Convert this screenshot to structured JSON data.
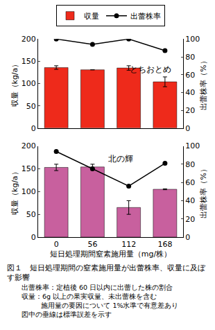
{
  "chart_data": [
    {
      "type": "bar",
      "annotations": [
        {
          "text": "とちおとめ"
        }
      ],
      "categories": [
        "0",
        "56",
        "112",
        "168"
      ],
      "tick_labels": "y",
      "y_label": "収量（kg/a）",
      "y2_label": "出蕾株率（%）",
      "ylim": [
        0,
        200
      ],
      "yticks": [
        0,
        50,
        100,
        150,
        200
      ],
      "y2lim": [
        0,
        100
      ],
      "y2ticks": [
        0,
        20,
        40,
        60,
        80,
        100
      ],
      "grid": false,
      "legend": "top",
      "series": [
        {
          "name": "収量",
          "type": "bar",
          "color": "#ee2a1b",
          "values": [
            136,
            131,
            135,
            104
          ],
          "errors": [
            4,
            0,
            5,
            11
          ]
        },
        {
          "name": "出蕾株率",
          "type": "line",
          "axis": "y2",
          "color": "#000000",
          "marker": "circle",
          "line_style": "solid",
          "values": [
            100,
            94,
            100,
            87
          ]
        }
      ]
    },
    {
      "type": "bar",
      "annotations": [
        {
          "text": "北の輝"
        }
      ],
      "categories": [
        "0",
        "56",
        "112",
        "168"
      ],
      "x_label": "短日処理期間窒素施用量（mg/株）",
      "y_label": "収量（kg/a）",
      "y2_label": "出蕾株率（%）",
      "ylim": [
        0,
        200
      ],
      "yticks": [
        0,
        50,
        100,
        150,
        200
      ],
      "y2lim": [
        0,
        100
      ],
      "y2ticks": [
        0,
        20,
        40,
        60,
        80,
        100
      ],
      "grid": false,
      "series": [
        {
          "name": "収量",
          "type": "bar",
          "color": "#c8609e",
          "values": [
            153,
            154,
            65,
            105
          ],
          "errors": [
            7,
            6,
            15,
            1
          ]
        },
        {
          "name": "出蕾株率",
          "type": "line",
          "axis": "y2",
          "color": "#000000",
          "marker": "circle",
          "line_style": "solid",
          "values": [
            94,
            75,
            56,
            81
          ]
        }
      ]
    }
  ],
  "caption": {
    "title": "図１　短日処理期間の窒素施用量が出蕾株率、収量に及ぼす影響",
    "notes": [
      "出蕾株率：定植後 60 日以内に出蕾した株の割合",
      "収量：6g 以上の果実収量、未出蕾株を含む",
      "施用量の要因について 1%水準で有意差あり",
      "図中の垂線は標準誤差を示す"
    ]
  }
}
